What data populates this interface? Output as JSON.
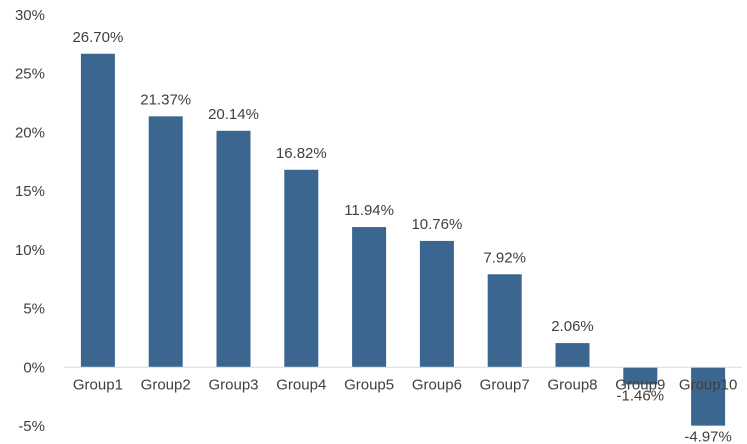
{
  "chart_data": {
    "type": "bar",
    "categories": [
      "Group1",
      "Group2",
      "Group3",
      "Group4",
      "Group5",
      "Group6",
      "Group7",
      "Group8",
      "Group9",
      "Group10"
    ],
    "values": [
      26.7,
      21.37,
      20.14,
      16.82,
      11.94,
      10.76,
      7.92,
      2.06,
      -1.46,
      -4.97
    ],
    "data_labels": [
      "26.70%",
      "21.37%",
      "20.14%",
      "16.82%",
      "11.94%",
      "10.76%",
      "7.92%",
      "2.06%",
      "-1.46%",
      "-4.97%"
    ],
    "y_ticks": [
      -5,
      0,
      5,
      10,
      15,
      20,
      25,
      30
    ],
    "y_tick_labels": [
      "-5%",
      "0%",
      "5%",
      "10%",
      "15%",
      "20%",
      "25%",
      "30%"
    ],
    "ylim": [
      -5,
      30
    ],
    "grid": false,
    "legend": "none",
    "title": "",
    "xlabel": "",
    "ylabel": "",
    "colors": {
      "bar": "#3a6690",
      "axis": "#d9d9d9",
      "text": "#404040"
    }
  }
}
